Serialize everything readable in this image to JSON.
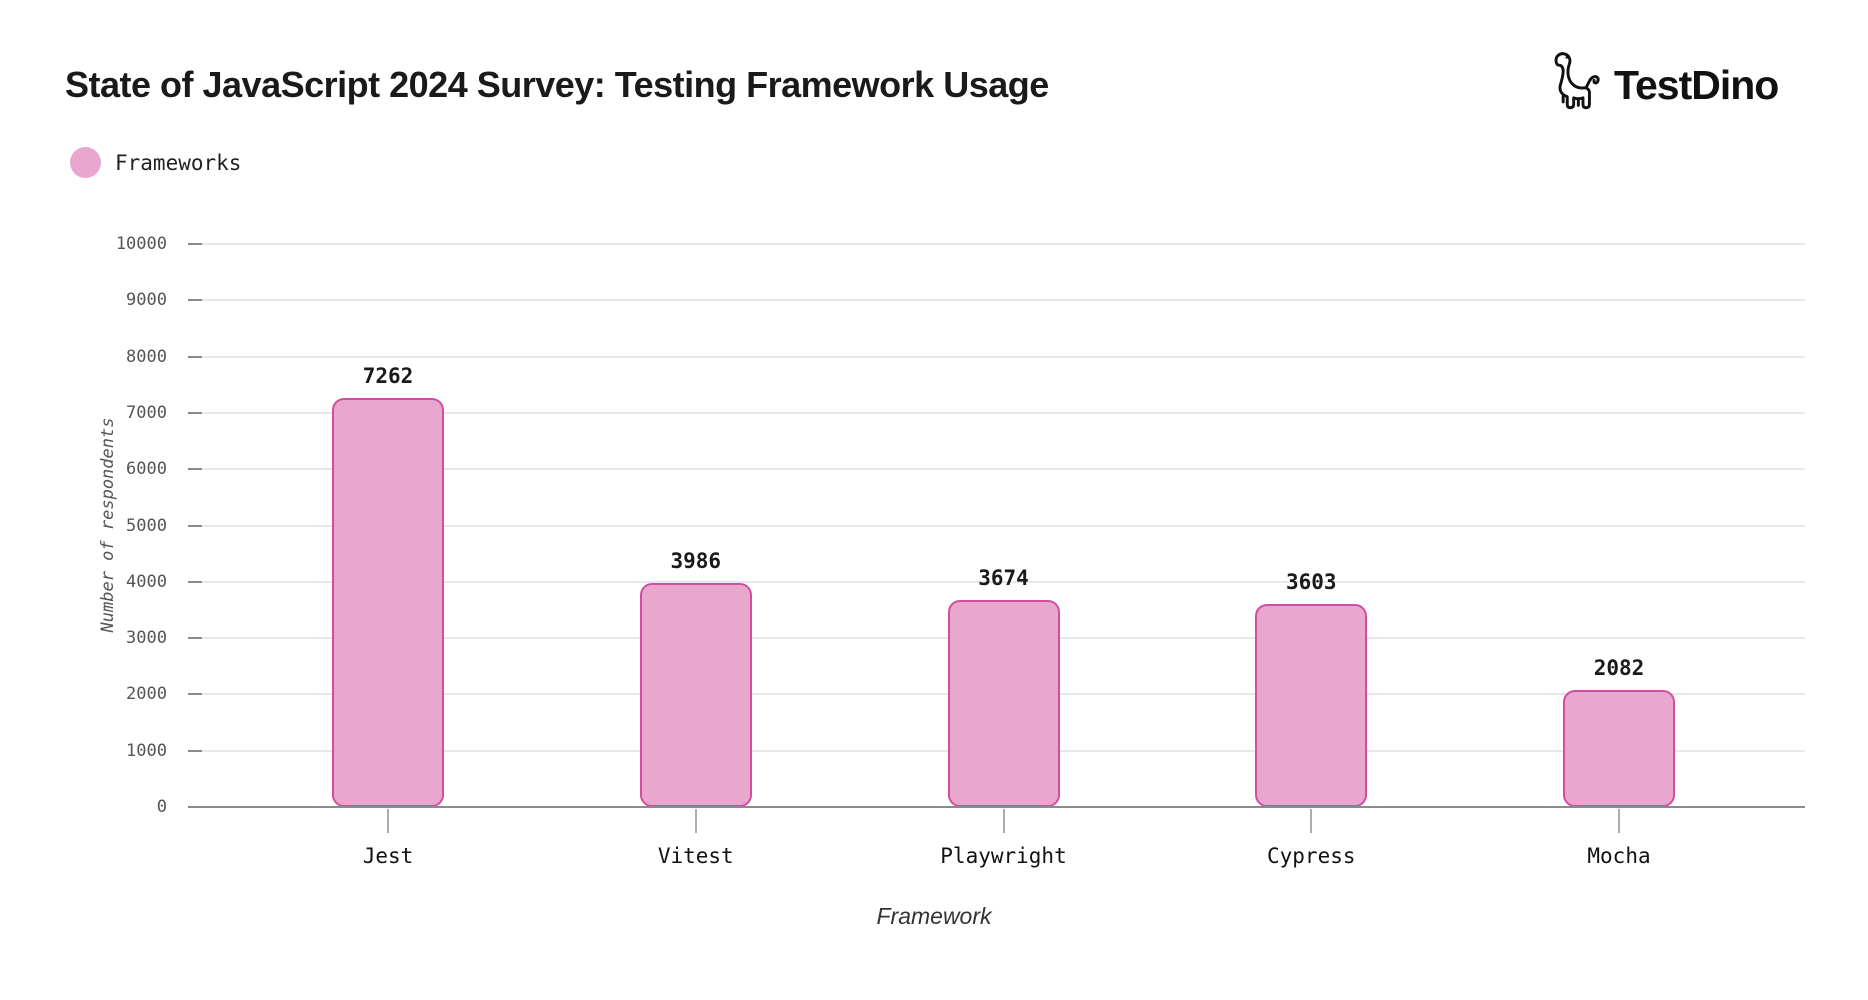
{
  "logo": {
    "icon": "dinosaur-icon",
    "text": "TestDino"
  },
  "legend": {
    "label": "Frameworks",
    "color": "#e9a7d0"
  },
  "colors": {
    "bar_fill": "#e9a7d0",
    "bar_border": "#d14da0",
    "grid": "#e8e8e8",
    "axis": "#8a8a8a",
    "tick_text": "#555555",
    "title_text": "#1a1a1a"
  },
  "chart_data": {
    "type": "bar",
    "title": "State of JavaScript 2024 Survey: Testing Framework Usage",
    "series_name": "Frameworks",
    "categories": [
      "Jest",
      "Vitest",
      "Playwright",
      "Cypress",
      "Mocha"
    ],
    "values": [
      7262,
      3986,
      3674,
      3603,
      2082
    ],
    "value_labels": [
      "7262",
      "3986",
      "3674",
      "3603",
      "2082"
    ],
    "xlabel": "Framework",
    "ylabel": "Number of respondents",
    "ylim": [
      0,
      10000
    ],
    "yticks": [
      0,
      1000,
      2000,
      3000,
      4000,
      5000,
      6000,
      7000,
      8000,
      9000,
      10000
    ],
    "grid": true,
    "legend_position": "top-left"
  }
}
